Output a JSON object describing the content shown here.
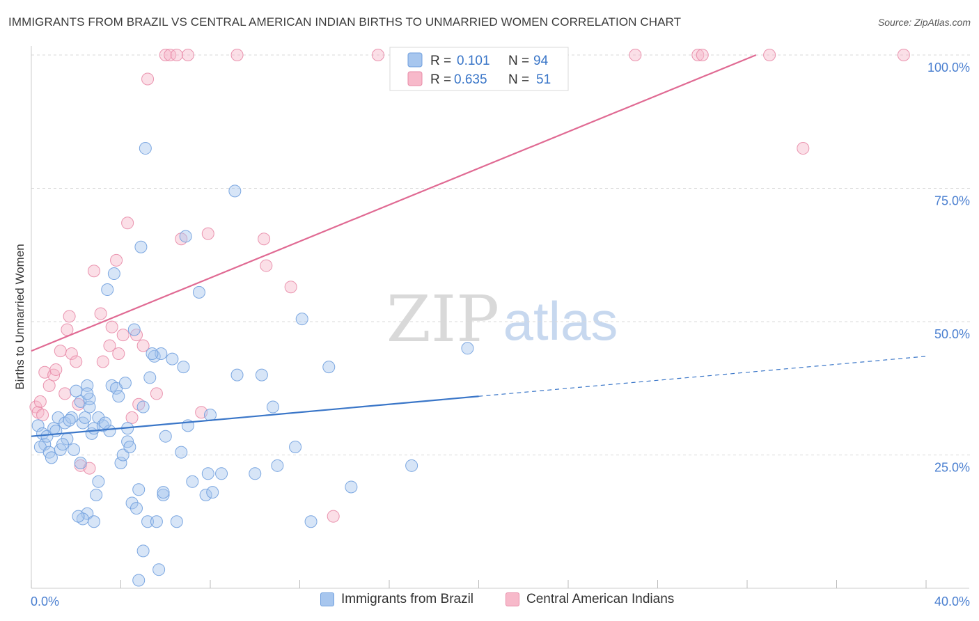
{
  "title": "IMMIGRANTS FROM BRAZIL VS CENTRAL AMERICAN INDIAN BIRTHS TO UNMARRIED WOMEN CORRELATION CHART",
  "source": "Source: ZipAtlas.com",
  "watermark": {
    "zip": "ZIP",
    "atlas": "atlas"
  },
  "colors": {
    "blue_fill": "#a7c6ee",
    "blue_stroke": "#6f9fde",
    "blue_line": "#3a76c8",
    "pink_fill": "#f7b9ca",
    "pink_stroke": "#e88aa7",
    "pink_line": "#e06a93",
    "axis_text": "#4a7fd0",
    "grid": "#d8d8d8"
  },
  "legend": {
    "rows": [
      {
        "r_label": "R =",
        "r_value": "0.101",
        "n_label": "N =",
        "n_value": "94"
      },
      {
        "r_label": "R =",
        "r_value": "0.635",
        "n_label": "N =",
        "n_value": "51"
      }
    ]
  },
  "chart_data": {
    "type": "scatter",
    "title": "IMMIGRANTS FROM BRAZIL VS CENTRAL AMERICAN INDIAN BIRTHS TO UNMARRIED WOMEN CORRELATION CHART",
    "xlabel": "",
    "ylabel": "Births to Unmarried Women",
    "xlim": [
      0,
      40
    ],
    "ylim": [
      0,
      100
    ],
    "x_tick_labels": [
      "0.0%",
      "40.0%"
    ],
    "y_tick_labels": [
      {
        "value": 25,
        "label": "25.0%"
      },
      {
        "value": 50,
        "label": "50.0%"
      },
      {
        "value": 75,
        "label": "75.0%"
      },
      {
        "value": 100,
        "label": "100.0%"
      }
    ],
    "grid": true,
    "series": [
      {
        "name": "Immigrants from Brazil",
        "color": "blue",
        "R": 0.101,
        "N": 94,
        "trend": {
          "x0": 0,
          "y0": 28.5,
          "x_solid_end": 20,
          "x1": 40,
          "y1": 43.5
        },
        "points": [
          [
            0.3,
            30.5
          ],
          [
            0.5,
            29.0
          ],
          [
            0.6,
            27.0
          ],
          [
            0.4,
            26.5
          ],
          [
            0.8,
            25.5
          ],
          [
            0.9,
            24.5
          ],
          [
            0.7,
            28.5
          ],
          [
            1.0,
            30.0
          ],
          [
            1.2,
            32.0
          ],
          [
            1.5,
            31.0
          ],
          [
            1.1,
            29.5
          ],
          [
            1.3,
            26.0
          ],
          [
            1.6,
            28.0
          ],
          [
            1.8,
            32.0
          ],
          [
            1.4,
            27.0
          ],
          [
            1.9,
            26.0
          ],
          [
            2.0,
            37.0
          ],
          [
            2.2,
            35.0
          ],
          [
            2.5,
            38.0
          ],
          [
            2.3,
            31.0
          ],
          [
            2.6,
            34.0
          ],
          [
            2.4,
            32.0
          ],
          [
            2.7,
            29.0
          ],
          [
            2.8,
            30.0
          ],
          [
            2.6,
            35.5
          ],
          [
            2.5,
            36.5
          ],
          [
            3.0,
            32.0
          ],
          [
            3.2,
            30.5
          ],
          [
            3.5,
            29.5
          ],
          [
            3.3,
            31.0
          ],
          [
            3.0,
            20.0
          ],
          [
            2.9,
            17.5
          ],
          [
            2.5,
            14.0
          ],
          [
            2.3,
            13.0
          ],
          [
            2.1,
            13.5
          ],
          [
            2.2,
            23.5
          ],
          [
            2.8,
            12.5
          ],
          [
            3.6,
            38.0
          ],
          [
            3.4,
            56.0
          ],
          [
            3.8,
            37.5
          ],
          [
            3.7,
            59.0
          ],
          [
            4.2,
            38.5
          ],
          [
            4.0,
            23.5
          ],
          [
            4.1,
            25.0
          ],
          [
            4.3,
            27.5
          ],
          [
            4.4,
            26.5
          ],
          [
            4.3,
            30.0
          ],
          [
            4.5,
            16.0
          ],
          [
            4.6,
            48.5
          ],
          [
            4.8,
            18.5
          ],
          [
            4.7,
            15.0
          ],
          [
            5.0,
            34.0
          ],
          [
            5.1,
            82.5
          ],
          [
            5.2,
            12.5
          ],
          [
            5.0,
            7.0
          ],
          [
            5.3,
            39.5
          ],
          [
            5.5,
            43.5
          ],
          [
            5.6,
            12.5
          ],
          [
            5.8,
            44.0
          ],
          [
            5.9,
            17.5
          ],
          [
            6.0,
            28.5
          ],
          [
            5.7,
            3.5
          ],
          [
            5.9,
            18.0
          ],
          [
            6.3,
            43.0
          ],
          [
            6.5,
            12.5
          ],
          [
            6.7,
            25.5
          ],
          [
            6.8,
            41.5
          ],
          [
            6.9,
            66.0
          ],
          [
            7.0,
            30.5
          ],
          [
            7.2,
            20.0
          ],
          [
            7.5,
            55.5
          ],
          [
            7.8,
            17.5
          ],
          [
            7.9,
            21.5
          ],
          [
            8.0,
            32.5
          ],
          [
            8.1,
            18.0
          ],
          [
            8.5,
            21.5
          ],
          [
            9.1,
            74.5
          ],
          [
            9.2,
            40.0
          ],
          [
            10.0,
            21.5
          ],
          [
            10.3,
            40.0
          ],
          [
            10.8,
            34.0
          ],
          [
            11.0,
            23.0
          ],
          [
            11.8,
            26.5
          ],
          [
            12.1,
            50.5
          ],
          [
            12.5,
            12.5
          ],
          [
            13.3,
            41.5
          ],
          [
            14.3,
            19.0
          ],
          [
            17.0,
            23.0
          ],
          [
            19.5,
            45.0
          ],
          [
            4.8,
            1.5
          ],
          [
            1.7,
            31.5
          ],
          [
            3.9,
            36.0
          ],
          [
            5.4,
            44.0
          ],
          [
            4.9,
            64.0
          ]
        ]
      },
      {
        "name": "Central American Indians",
        "color": "pink",
        "R": 0.635,
        "N": 51,
        "trend": {
          "x0": 0,
          "y0": 44.5,
          "x1": 32.4,
          "y1": 100
        },
        "points": [
          [
            0.2,
            34.0
          ],
          [
            0.3,
            33.0
          ],
          [
            0.4,
            35.0
          ],
          [
            0.5,
            32.5
          ],
          [
            0.6,
            40.5
          ],
          [
            0.8,
            38.0
          ],
          [
            1.0,
            40.0
          ],
          [
            1.1,
            41.0
          ],
          [
            1.3,
            44.5
          ],
          [
            1.5,
            36.5
          ],
          [
            1.6,
            48.5
          ],
          [
            1.8,
            44.0
          ],
          [
            1.7,
            51.0
          ],
          [
            2.0,
            42.5
          ],
          [
            2.1,
            34.5
          ],
          [
            2.2,
            23.0
          ],
          [
            2.6,
            22.5
          ],
          [
            2.8,
            59.5
          ],
          [
            3.1,
            51.5
          ],
          [
            3.2,
            42.5
          ],
          [
            3.5,
            45.5
          ],
          [
            3.6,
            49.0
          ],
          [
            3.8,
            61.5
          ],
          [
            3.9,
            44.0
          ],
          [
            4.1,
            47.5
          ],
          [
            4.3,
            68.5
          ],
          [
            4.5,
            32.0
          ],
          [
            4.7,
            47.5
          ],
          [
            4.8,
            34.5
          ],
          [
            5.0,
            45.5
          ],
          [
            5.2,
            95.5
          ],
          [
            5.6,
            36.5
          ],
          [
            6.0,
            100.0
          ],
          [
            6.2,
            100.0
          ],
          [
            6.5,
            100.0
          ],
          [
            6.7,
            65.5
          ],
          [
            7.0,
            100.0
          ],
          [
            7.6,
            33.0
          ],
          [
            7.9,
            66.5
          ],
          [
            9.2,
            100.0
          ],
          [
            10.4,
            65.5
          ],
          [
            10.5,
            60.5
          ],
          [
            11.6,
            56.5
          ],
          [
            13.5,
            13.5
          ],
          [
            15.5,
            100.0
          ],
          [
            27.0,
            100.0
          ],
          [
            29.8,
            100.0
          ],
          [
            30.0,
            100.0
          ],
          [
            33.0,
            100.0
          ],
          [
            34.5,
            82.5
          ],
          [
            39.0,
            100.0
          ]
        ]
      }
    ]
  },
  "bottom_legend": [
    {
      "label": "Immigrants from Brazil"
    },
    {
      "label": "Central American Indians"
    }
  ]
}
